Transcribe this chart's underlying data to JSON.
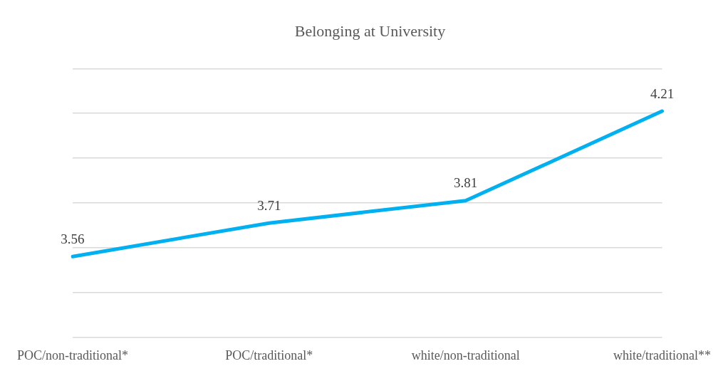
{
  "chart_data": {
    "type": "line",
    "title": "Belonging at University",
    "categories": [
      "POC/non-traditional*",
      "POC/traditional*",
      "white/non-traditional",
      "white/traditional**"
    ],
    "series": [
      {
        "color": "#00b0f0",
        "values": [
          3.56,
          3.71,
          3.81,
          4.21
        ]
      }
    ],
    "ylim": [
      3.2,
      4.4
    ],
    "yticks": [
      {
        "value": 3.2,
        "label": null
      },
      {
        "value": 3.4,
        "label": null
      },
      {
        "value": 3.6,
        "label": null
      },
      {
        "value": 3.8,
        "label": null
      },
      {
        "value": 4.0,
        "label": null
      },
      {
        "value": 4.2,
        "label": null
      },
      {
        "value": 4.4,
        "label": null
      }
    ],
    "tick_labels": "x",
    "grid": "y",
    "data_labels": true,
    "marker": "none",
    "line_style": "solid",
    "legend": false
  }
}
